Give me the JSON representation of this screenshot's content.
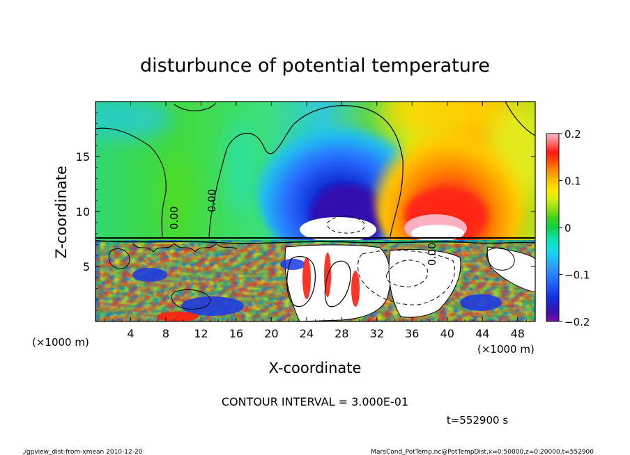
{
  "chart_data": {
    "type": "heatmap",
    "title": "disturbunce of potential temperature",
    "xlabel": "X-coordinate",
    "ylabel": "Z-coordinate",
    "x_unit_left": "(×1000 m)",
    "x_unit_right": "(×1000 m)",
    "xlim": [
      0,
      50
    ],
    "ylim": [
      0,
      20
    ],
    "x_ticks": [
      4,
      8,
      12,
      16,
      20,
      24,
      28,
      32,
      36,
      40,
      44,
      48
    ],
    "y_ticks": [
      5,
      10,
      15
    ],
    "colorbar": {
      "range": [
        -0.2,
        0.2
      ],
      "tick_values": [
        0.2,
        0.1,
        0,
        -0.1,
        -0.2
      ],
      "tick_labels": [
        "0.2",
        "0.1",
        "0",
        "−0.1",
        "−0.2"
      ],
      "colors": [
        "#7a0fa0",
        "#3a10b0",
        "#1030e0",
        "#2060ff",
        "#3090ff",
        "#20b8ff",
        "#10e0e0",
        "#10e0a0",
        "#10d040",
        "#40d020",
        "#90e010",
        "#d8ee10",
        "#ffe800",
        "#ffc000",
        "#ff9000",
        "#ff5000",
        "#ff1810",
        "#f01010",
        "#ff7070",
        "#ffb8c8"
      ]
    },
    "contour_interval_text": "CONTOUR INTERVAL = 3.000E-01",
    "time_text": "t=552900 s",
    "contour_labels": [
      "0.00",
      "0.00",
      "0.00"
    ],
    "fields": [
      {
        "name": "negative anomaly",
        "x": 28.5,
        "z": 11.5,
        "value": -0.2
      },
      {
        "name": "positive anomaly",
        "x": 39.5,
        "z": 11.5,
        "value": 0.2
      }
    ]
  },
  "footer": {
    "left": "./gpview_dist-from-xmean  2010-12-20",
    "right": "MarsCond_PotTemp.nc@PotTempDist,x=0:50000,z=0:20000,t=552900"
  }
}
